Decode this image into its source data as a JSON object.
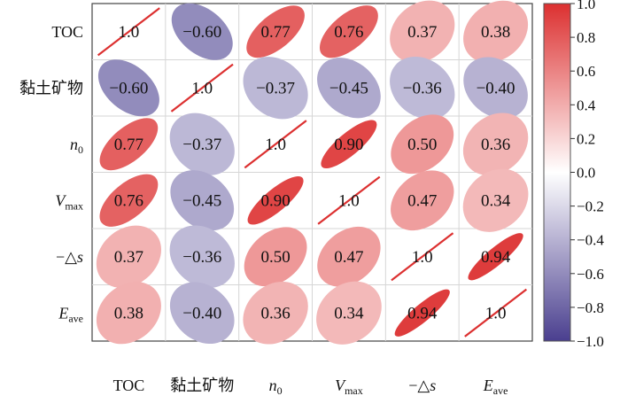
{
  "chart_data": {
    "type": "heatmap",
    "subtype": "correlation-ellipse-matrix",
    "variables": [
      {
        "label": "TOC",
        "main": "TOC",
        "sub": "",
        "italic": false
      },
      {
        "label": "黏土矿物",
        "main": "黏土矿物",
        "sub": "",
        "italic": false
      },
      {
        "label": "n0",
        "main": "n",
        "sub": "0",
        "italic": true
      },
      {
        "label": "Vmax",
        "main": "V",
        "sub": "max",
        "italic": true
      },
      {
        "label": "−△s",
        "main": "−△",
        "sub": "",
        "italic": false,
        "suffix": "s"
      },
      {
        "label": "Eave",
        "main": "E",
        "sub": "ave",
        "italic": true
      }
    ],
    "matrix": [
      [
        1.0,
        -0.6,
        0.77,
        0.76,
        0.37,
        0.38
      ],
      [
        -0.6,
        1.0,
        -0.37,
        -0.45,
        -0.36,
        -0.4
      ],
      [
        0.77,
        -0.37,
        1.0,
        0.9,
        0.5,
        0.36
      ],
      [
        0.76,
        -0.45,
        0.9,
        1.0,
        0.47,
        0.34
      ],
      [
        0.37,
        -0.36,
        0.5,
        0.47,
        1.0,
        0.94
      ],
      [
        0.38,
        -0.4,
        0.36,
        0.34,
        0.94,
        1.0
      ]
    ],
    "value_labels": [
      [
        "1.0",
        "−0.60",
        "0.77",
        "0.76",
        "0.37",
        "0.38"
      ],
      [
        "−0.60",
        "1.0",
        "−0.37",
        "−0.45",
        "−0.36",
        "−0.40"
      ],
      [
        "0.77",
        "−0.37",
        "1.0",
        "0.90",
        "0.50",
        "0.36"
      ],
      [
        "0.76",
        "−0.45",
        "0.90",
        "1.0",
        "0.47",
        "0.34"
      ],
      [
        "0.37",
        "−0.36",
        "0.50",
        "0.47",
        "1.0",
        "0.94"
      ],
      [
        "0.38",
        "−0.40",
        "0.36",
        "0.34",
        "0.94",
        "1.0"
      ]
    ],
    "colorbar": {
      "range": [
        -1.0,
        1.0
      ],
      "ticks": [
        "1.0",
        "0.8",
        "0.6",
        "0.4",
        "0.2",
        "0.0",
        "−0.2",
        "−0.4",
        "−0.6",
        "−0.8",
        "−1.0"
      ],
      "tick_values": [
        1.0,
        0.8,
        0.6,
        0.4,
        0.2,
        0.0,
        -0.2,
        -0.4,
        -0.6,
        -0.8,
        -1.0
      ],
      "positive_color": "#dc3030",
      "zero_color": "#ffffff",
      "negative_color": "#4a3f8f"
    },
    "grid": true
  }
}
